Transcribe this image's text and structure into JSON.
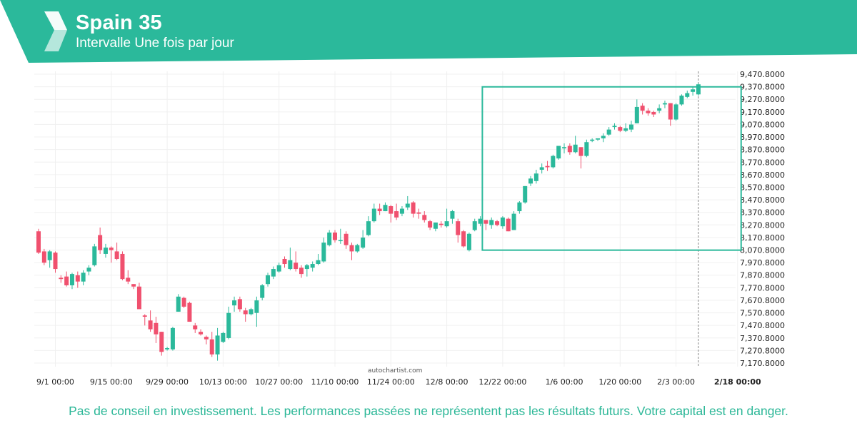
{
  "header": {
    "title": "Spain 35",
    "subtitle": "Intervalle Une fois par jour",
    "brand_color": "#2bb99b",
    "logo": "autochartist-logo-icon"
  },
  "watermark": "autochartist.com",
  "disclaimer": "Pas de conseil en investissement. Les performances passées ne représentent pas les résultats futurs. Votre capital est en danger.",
  "colors": {
    "up": "#2bb99b",
    "down": "#f0506e",
    "pattern": "#2bb99b",
    "grid": "#f0f0f0"
  },
  "chart_data": {
    "type": "candlestick",
    "title": "Spain 35",
    "ylim": [
      7100,
      9500
    ],
    "y_ticks": [
      "9,470.8000",
      "9,370.8000",
      "9,270.8000",
      "9,170.8000",
      "9,070.8000",
      "8,970.8000",
      "8,870.8000",
      "8,770.8000",
      "8,670.8000",
      "8,570.8000",
      "8,470.8000",
      "8,370.8000",
      "8,270.8000",
      "8,170.8000",
      "8,070.8000",
      "7,970.8000",
      "7,870.8000",
      "7,770.8000",
      "7,670.8000",
      "7,570.8000",
      "7,470.8000",
      "7,370.8000",
      "7,270.8000",
      "7,170.8000"
    ],
    "x_ticks": [
      "9/1 00:00",
      "9/15 00:00",
      "9/29 00:00",
      "10/13 00:00",
      "10/27 00:00",
      "11/10 00:00",
      "11/24 00:00",
      "12/8 00:00",
      "12/22 00:00",
      "1/6 00:00",
      "1/20 00:00",
      "2/3 00:00",
      "2/18 00:00"
    ],
    "current_date_label": "2/18 00:00",
    "candles": [
      [
        8220,
        8050,
        8240,
        8040
      ],
      [
        8060,
        7970,
        8080,
        7950
      ],
      [
        7990,
        8060,
        8070,
        7930
      ],
      [
        8050,
        7920,
        8060,
        7890
      ],
      [
        7850,
        7840,
        7870,
        7810
      ],
      [
        7860,
        7790,
        7900,
        7780
      ],
      [
        7790,
        7880,
        7890,
        7760
      ],
      [
        7870,
        7820,
        7900,
        7770
      ],
      [
        7820,
        7890,
        7910,
        7790
      ],
      [
        7900,
        7930,
        7950,
        7870
      ],
      [
        7950,
        8100,
        8120,
        7940
      ],
      [
        8190,
        8070,
        8250,
        8040
      ],
      [
        8040,
        8090,
        8120,
        8010
      ],
      [
        8090,
        8070,
        8100,
        7970
      ],
      [
        8060,
        8000,
        8130,
        7990
      ],
      [
        8040,
        7840,
        8060,
        7830
      ],
      [
        7850,
        7820,
        7910,
        7800
      ],
      [
        7800,
        7780,
        7800,
        7760
      ],
      [
        7780,
        7600,
        7810,
        7600
      ],
      [
        7550,
        7540,
        7560,
        7470
      ],
      [
        7510,
        7440,
        7590,
        7420
      ],
      [
        7490,
        7400,
        7540,
        7330
      ],
      [
        7420,
        7260,
        7420,
        7230
      ],
      [
        7280,
        7290,
        7300,
        7270
      ],
      [
        7280,
        7450,
        7460,
        7270
      ],
      [
        7580,
        7700,
        7720,
        7580
      ],
      [
        7690,
        7620,
        7700,
        7610
      ],
      [
        7650,
        7500,
        7660,
        7500
      ],
      [
        7470,
        7440,
        7490,
        7410
      ],
      [
        7420,
        7400,
        7440,
        7390
      ],
      [
        7380,
        7360,
        7390,
        7320
      ],
      [
        7360,
        7240,
        7420,
        7220
      ],
      [
        7240,
        7390,
        7450,
        7190
      ],
      [
        7340,
        7410,
        7420,
        7330
      ],
      [
        7370,
        7570,
        7620,
        7360
      ],
      [
        7630,
        7670,
        7700,
        7580
      ],
      [
        7680,
        7600,
        7700,
        7580
      ],
      [
        7590,
        7560,
        7610,
        7500
      ],
      [
        7560,
        7600,
        7610,
        7550
      ],
      [
        7570,
        7670,
        7700,
        7460
      ],
      [
        7690,
        7790,
        7800,
        7670
      ],
      [
        7800,
        7870,
        7890,
        7780
      ],
      [
        7860,
        7920,
        7940,
        7840
      ],
      [
        7900,
        7950,
        7970,
        7890
      ],
      [
        8000,
        7960,
        8020,
        7930
      ],
      [
        7920,
        7990,
        8090,
        7910
      ],
      [
        7970,
        7920,
        8060,
        7900
      ],
      [
        7930,
        7880,
        7950,
        7850
      ],
      [
        7920,
        7950,
        7960,
        7860
      ],
      [
        7930,
        7960,
        7980,
        7900
      ],
      [
        7960,
        7990,
        8040,
        7950
      ],
      [
        7980,
        8130,
        8170,
        7970
      ],
      [
        8110,
        8210,
        8230,
        8100
      ],
      [
        8210,
        8150,
        8230,
        8130
      ],
      [
        8150,
        8150,
        8240,
        8120
      ],
      [
        8200,
        8110,
        8220,
        8080
      ],
      [
        8110,
        8060,
        8130,
        7990
      ],
      [
        8060,
        8110,
        8120,
        8050
      ],
      [
        8090,
        8170,
        8230,
        8080
      ],
      [
        8190,
        8300,
        8340,
        8180
      ],
      [
        8300,
        8400,
        8440,
        8290
      ],
      [
        8400,
        8380,
        8440,
        8350
      ],
      [
        8380,
        8430,
        8450,
        8380
      ],
      [
        8420,
        8360,
        8430,
        8290
      ],
      [
        8380,
        8330,
        8440,
        8310
      ],
      [
        8360,
        8400,
        8420,
        8340
      ],
      [
        8410,
        8440,
        8500,
        8390
      ],
      [
        8450,
        8360,
        8460,
        8330
      ],
      [
        8370,
        8360,
        8400,
        8320
      ],
      [
        8350,
        8310,
        8380,
        8290
      ],
      [
        8300,
        8250,
        8310,
        8230
      ],
      [
        8240,
        8290,
        8290,
        8220
      ],
      [
        8280,
        8270,
        8300,
        8250
      ],
      [
        8260,
        8300,
        8400,
        8250
      ],
      [
        8320,
        8380,
        8390,
        8280
      ],
      [
        8300,
        8190,
        8320,
        8130
      ],
      [
        8220,
        8100,
        8230,
        8090
      ],
      [
        8070,
        8200,
        8210,
        8060
      ],
      [
        8230,
        8300,
        8320,
        8220
      ],
      [
        8280,
        8320,
        8340,
        8260
      ],
      [
        8310,
        8280,
        8310,
        8230
      ],
      [
        8270,
        8310,
        8330,
        8240
      ],
      [
        8300,
        8270,
        8310,
        8260
      ],
      [
        8260,
        8330,
        8340,
        8240
      ],
      [
        8320,
        8220,
        8330,
        8220
      ],
      [
        8230,
        8360,
        8380,
        8230
      ],
      [
        8380,
        8450,
        8460,
        8360
      ],
      [
        8450,
        8580,
        8580,
        8440
      ],
      [
        8600,
        8640,
        8660,
        8580
      ],
      [
        8620,
        8680,
        8710,
        8600
      ],
      [
        8710,
        8730,
        8760,
        8680
      ],
      [
        8740,
        8730,
        8780,
        8700
      ],
      [
        8730,
        8820,
        8830,
        8720
      ],
      [
        8800,
        8900,
        8900,
        8790
      ],
      [
        8880,
        8890,
        8920,
        8840
      ],
      [
        8900,
        8850,
        8920,
        8830
      ],
      [
        8850,
        8910,
        8980,
        8840
      ],
      [
        8890,
        8820,
        8890,
        8720
      ],
      [
        8820,
        8930,
        8950,
        8810
      ],
      [
        8940,
        8950,
        8960,
        8930
      ],
      [
        8950,
        8960,
        8960,
        8940
      ],
      [
        8960,
        8980,
        9000,
        8930
      ],
      [
        8990,
        9030,
        9050,
        8980
      ],
      [
        9050,
        9060,
        9080,
        9030
      ],
      [
        9050,
        9020,
        9060,
        9010
      ],
      [
        9020,
        9040,
        9080,
        9010
      ],
      [
        9030,
        9070,
        9100,
        9010
      ],
      [
        9080,
        9210,
        9270,
        9080
      ],
      [
        9220,
        9180,
        9240,
        9150
      ],
      [
        9180,
        9160,
        9200,
        9140
      ],
      [
        9170,
        9150,
        9180,
        9130
      ],
      [
        9180,
        9200,
        9230,
        9160
      ],
      [
        9230,
        9240,
        9260,
        9200
      ],
      [
        9240,
        9110,
        9240,
        9060
      ],
      [
        9110,
        9230,
        9240,
        9100
      ],
      [
        9230,
        9300,
        9310,
        9220
      ],
      [
        9290,
        9320,
        9340,
        9280
      ],
      [
        9330,
        9350,
        9370,
        9300
      ],
      [
        9310,
        9390,
        9400,
        9300
      ]
    ],
    "pattern_box": {
      "start_index": 80,
      "end_index": 125,
      "low": 8070,
      "high": 9370
    }
  }
}
